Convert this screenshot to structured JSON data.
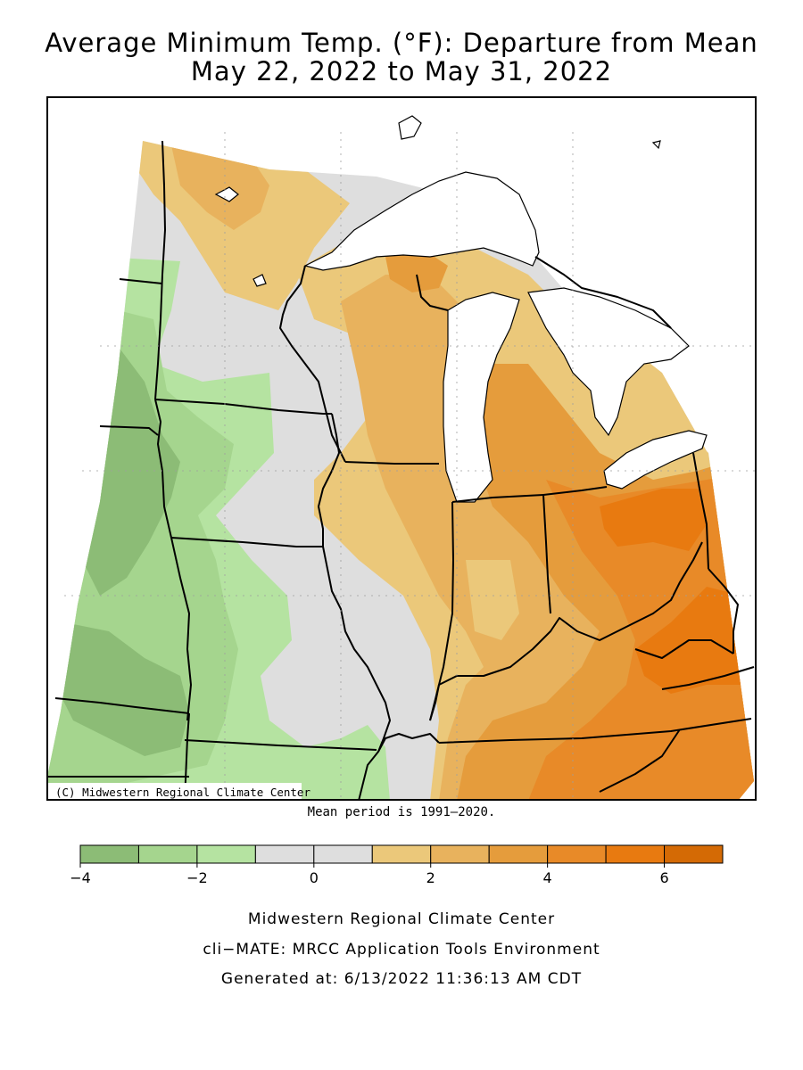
{
  "title": {
    "line1": "Average Minimum Temp. (°F): Departure from Mean",
    "line2": "May 22, 2022 to May 31, 2022"
  },
  "map": {
    "copyright": "(C) Midwestern Regional Climate Center",
    "colors": {
      "dark_green": "#8cbc76",
      "mid_green": "#a5d58e",
      "light_green": "#b5e3a1",
      "gray": "#dedede",
      "pale_orange": "#ebc87a",
      "light_orange": "#e8b25d",
      "mid_orange": "#e59c3c",
      "orange": "#e88a28",
      "deep_orange": "#e87a10",
      "water": "#ffffff",
      "border": "#000000"
    }
  },
  "mean_period": "Mean period is 1991–2020.",
  "legend": {
    "ticks": [
      -4,
      -2,
      0,
      2,
      4,
      6
    ],
    "tick_labels": [
      "−4",
      "−2",
      "0",
      "2",
      "4",
      "6"
    ],
    "bins": [
      {
        "from": -4,
        "to": -3,
        "color": "#8cbc76"
      },
      {
        "from": -3,
        "to": -2,
        "color": "#a5d58e"
      },
      {
        "from": -2,
        "to": -1,
        "color": "#b5e3a1"
      },
      {
        "from": -1,
        "to": 0,
        "color": "#dedede"
      },
      {
        "from": 0,
        "to": 1,
        "color": "#dedede"
      },
      {
        "from": 1,
        "to": 2,
        "color": "#ebc87a"
      },
      {
        "from": 2,
        "to": 3,
        "color": "#e8b25d"
      },
      {
        "from": 3,
        "to": 4,
        "color": "#e59c3c"
      },
      {
        "from": 4,
        "to": 5,
        "color": "#e88a28"
      },
      {
        "from": 5,
        "to": 6,
        "color": "#e87a10"
      },
      {
        "from": 6,
        "to": 7,
        "color": "#d46a05"
      }
    ]
  },
  "footer": {
    "line1": "Midwestern Regional Climate Center",
    "line2": "cli−MATE: MRCC Application Tools Environment",
    "line3": "Generated at: 6/13/2022 11:36:13 AM CDT"
  }
}
